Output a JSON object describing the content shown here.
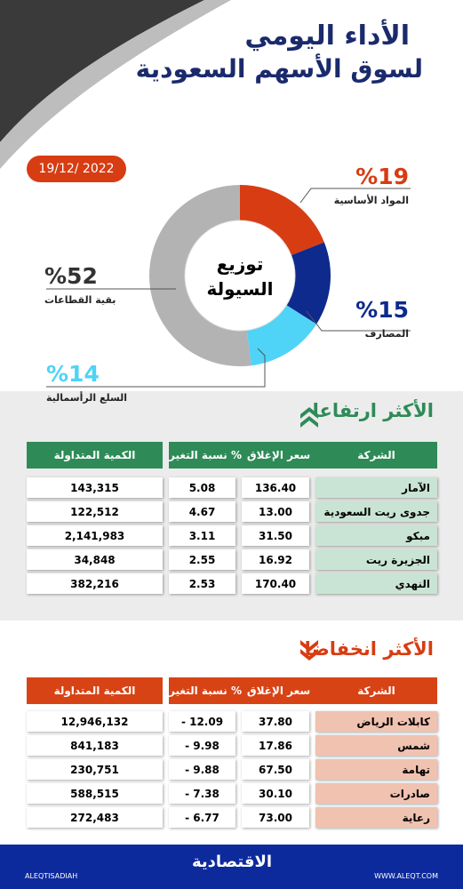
{
  "header": {
    "title_line1": "الأداء اليومي",
    "title_line2": "لسوق الأسهم السعودية",
    "date": "19/12/ 2022"
  },
  "chart_data": {
    "type": "pie",
    "title": "توزيع السيولة",
    "categories": [
      "المواد الأساسية",
      "المصارف",
      "السلع الرأسمالية",
      "بقية القطاعات"
    ],
    "values": [
      19,
      15,
      14,
      52
    ],
    "value_labels": [
      "%19",
      "%15",
      "%14",
      "%52"
    ],
    "colors": [
      "#d83c12",
      "#0d2a8c",
      "#4fd3f7",
      "#b3b3b3"
    ]
  },
  "gainers": {
    "title": "الأكثر ارتفاعا",
    "columns": [
      "الشركة",
      "سعر الإغلاق",
      "نسبة التغير %",
      "الكمية المتداولة"
    ],
    "rows": [
      [
        "الآمار",
        "136.40",
        "5.08",
        "143,315"
      ],
      [
        "جدوى ريت السعودية",
        "13.00",
        "4.67",
        "122,512"
      ],
      [
        "مبكو",
        "31.50",
        "3.11",
        "2,141,983"
      ],
      [
        "الجزيرة ريت",
        "16.92",
        "2.55",
        "34,848"
      ],
      [
        "النهدي",
        "170.40",
        "2.53",
        "382,216"
      ]
    ]
  },
  "losers": {
    "title": "الأكثر انخفاضا",
    "columns": [
      "الشركة",
      "سعر الإغلاق",
      "نسبة التغير %",
      "الكمية المتداولة"
    ],
    "rows": [
      [
        "كابلات الرياض",
        "37.80",
        "- 12.09",
        "12,946,132"
      ],
      [
        "شمس",
        "17.86",
        "- 9.98",
        "841,183"
      ],
      [
        "تهامة",
        "67.50",
        "- 9.88",
        "230,751"
      ],
      [
        "صادرات",
        "30.10",
        "- 7.38",
        "588,515"
      ],
      [
        "رعاية",
        "73.00",
        "- 6.77",
        "272,483"
      ]
    ]
  },
  "footer": {
    "brand": "الاقتصادية",
    "social": "ALEQTISADIAH",
    "website": "WWW.ALEQT.COM"
  }
}
